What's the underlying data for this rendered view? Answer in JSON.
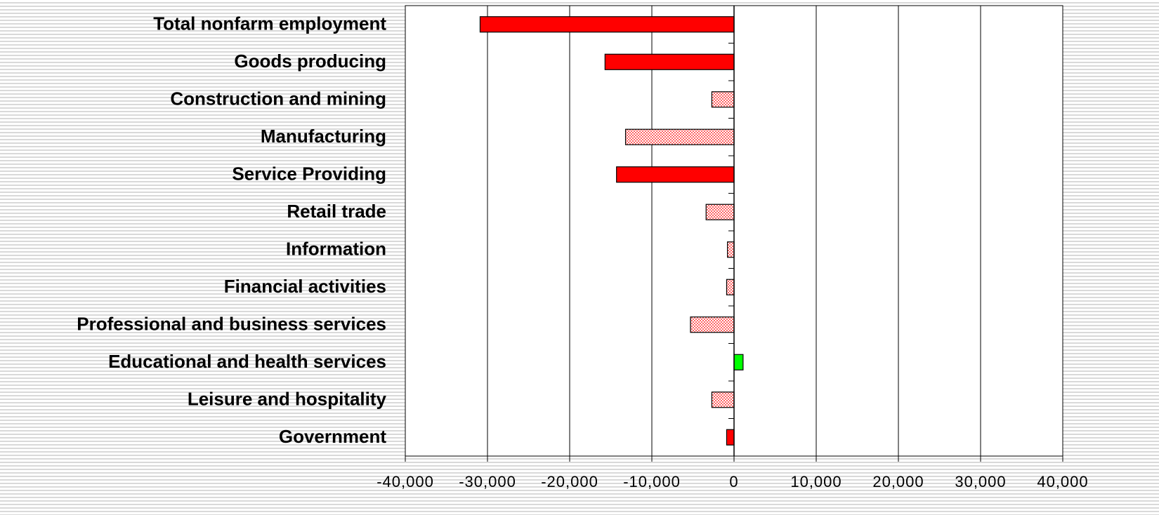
{
  "chart_data": {
    "type": "hbar",
    "categories": [
      "Total nonfarm employment",
      "Goods producing",
      "Construction and mining",
      "Manufacturing",
      "Service Providing",
      "Retail trade",
      "Information",
      "Financial activities",
      "Professional and business services",
      "Educational and health services",
      "Leisure and hospitality",
      "Government"
    ],
    "values": [
      -30900,
      -15700,
      -2700,
      -13200,
      -14300,
      -3400,
      -800,
      -900,
      -5300,
      1100,
      -2700,
      -900
    ],
    "colors": [
      "#ff0000",
      "#ff0000",
      "#ff9a9a",
      "#ff9a9a",
      "#ff0000",
      "#ff9a9a",
      "#ff9a9a",
      "#ff9a9a",
      "#ff9a9a",
      "#00ff00",
      "#ff9a9a",
      "#ff0000"
    ],
    "xlim": [
      -40000,
      40000
    ],
    "xticks": [
      {
        "value": -40000,
        "label": "-40,000"
      },
      {
        "value": -30000,
        "label": "-30,000"
      },
      {
        "value": -20000,
        "label": "-20,000"
      },
      {
        "value": -10000,
        "label": "-10,000"
      },
      0,
      {
        "value": 10000,
        "label": "10,000"
      },
      {
        "value": 20000,
        "label": "20,000"
      },
      {
        "value": 30000,
        "label": "30,000"
      },
      {
        "value": 40000,
        "label": "40,000"
      }
    ],
    "grid": true
  }
}
